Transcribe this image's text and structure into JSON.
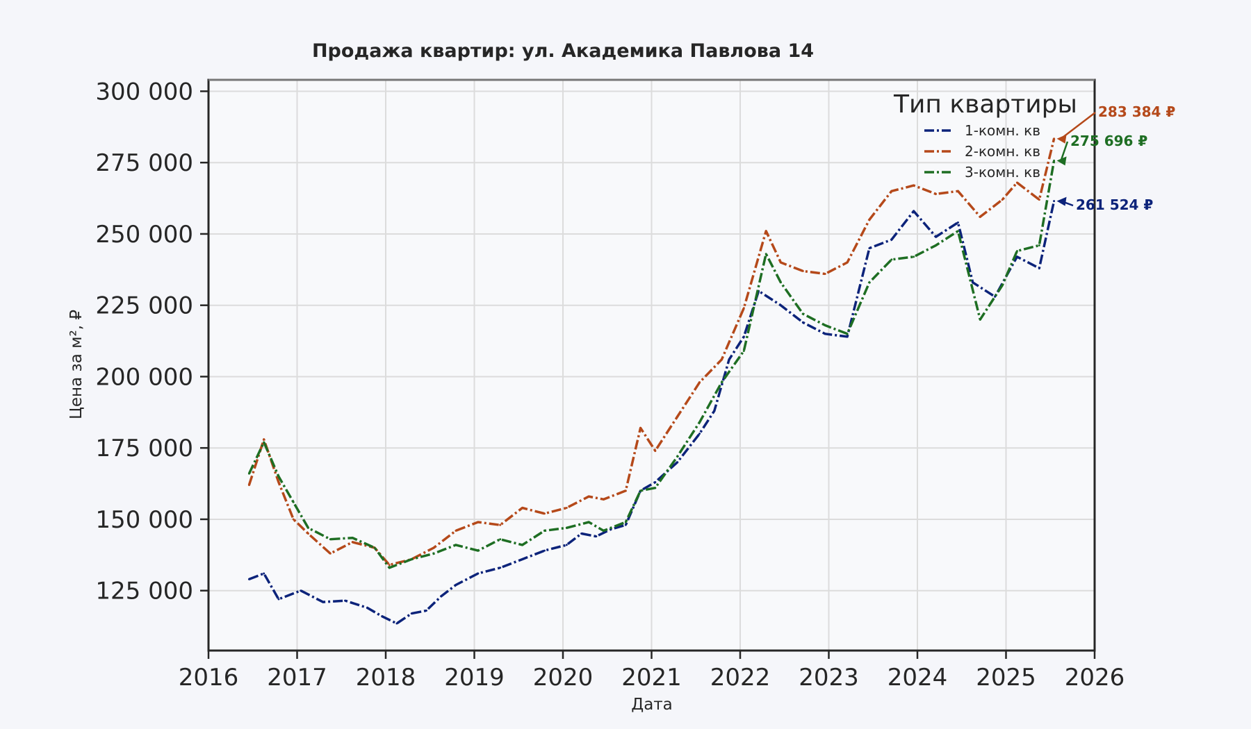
{
  "chart_data": {
    "type": "line",
    "title": "Продажа квартир: ул. Академика Павлова 14",
    "xlabel": "Дата",
    "ylabel": "Цена за м², ₽",
    "xlim": [
      "2016-01-01",
      "2026-01-01"
    ],
    "ylim": [
      104000,
      304000
    ],
    "x_ticks": [
      "2016",
      "2017",
      "2018",
      "2019",
      "2020",
      "2021",
      "2022",
      "2023",
      "2024",
      "2025",
      "2026"
    ],
    "y_ticks": [
      {
        "value": 125000,
        "label": "125 000"
      },
      {
        "value": 150000,
        "label": "150 000"
      },
      {
        "value": 175000,
        "label": "175 000"
      },
      {
        "value": 200000,
        "label": "200 000"
      },
      {
        "value": 225000,
        "label": "225 000"
      },
      {
        "value": 250000,
        "label": "250 000"
      },
      {
        "value": 275000,
        "label": "275 000"
      },
      {
        "value": 300000,
        "label": "300 000"
      }
    ],
    "grid": true,
    "legend": {
      "title": "Тип квартиры",
      "position": "top-right"
    },
    "series": [
      {
        "name": "1-комн. кв",
        "color": "#0c237a",
        "points": [
          [
            "2016-06",
            "129000"
          ],
          [
            "2016-08",
            "131000"
          ],
          [
            "2016-10",
            "122000"
          ],
          [
            "2017-01",
            "125000"
          ],
          [
            "2017-04",
            "121000"
          ],
          [
            "2017-07",
            "121500"
          ],
          [
            "2017-10",
            "119000"
          ],
          [
            "2017-12",
            "116000"
          ],
          [
            "2018-02",
            "113500"
          ],
          [
            "2018-04",
            "117000"
          ],
          [
            "2018-06",
            "118000"
          ],
          [
            "2018-08",
            "123000"
          ],
          [
            "2018-10",
            "127000"
          ],
          [
            "2019-01",
            "131000"
          ],
          [
            "2019-04",
            "133000"
          ],
          [
            "2019-07",
            "136000"
          ],
          [
            "2019-10",
            "139000"
          ],
          [
            "2020-01",
            "141000"
          ],
          [
            "2020-03",
            "145000"
          ],
          [
            "2020-05",
            "144000"
          ],
          [
            "2020-07",
            "146500"
          ],
          [
            "2020-09",
            "148000"
          ],
          [
            "2020-11",
            "160000"
          ],
          [
            "2021-01",
            "163000"
          ],
          [
            "2021-04",
            "170000"
          ],
          [
            "2021-07",
            "180000"
          ],
          [
            "2021-09",
            "188000"
          ],
          [
            "2021-11",
            "206000"
          ],
          [
            "2022-01",
            "214000"
          ],
          [
            "2022-03",
            "230000"
          ],
          [
            "2022-06",
            "225000"
          ],
          [
            "2022-09",
            "219000"
          ],
          [
            "2022-12",
            "215000"
          ],
          [
            "2023-03",
            "214000"
          ],
          [
            "2023-06",
            "245000"
          ],
          [
            "2023-09",
            "248000"
          ],
          [
            "2023-12",
            "258000"
          ],
          [
            "2024-03",
            "249000"
          ],
          [
            "2024-06",
            "254000"
          ],
          [
            "2024-08",
            "233000"
          ],
          [
            "2024-11",
            "228000"
          ],
          [
            "2025-02",
            "242000"
          ],
          [
            "2025-05",
            "238000"
          ],
          [
            "2025-07",
            "261524"
          ]
        ]
      },
      {
        "name": "2-комн. кв",
        "color": "#b5491a",
        "points": [
          [
            "2016-06",
            "162000"
          ],
          [
            "2016-08",
            "178000"
          ],
          [
            "2016-10",
            "163000"
          ],
          [
            "2016-12",
            "150000"
          ],
          [
            "2017-02",
            "145000"
          ],
          [
            "2017-05",
            "138000"
          ],
          [
            "2017-08",
            "142000"
          ],
          [
            "2017-11",
            "140000"
          ],
          [
            "2018-01",
            "134000"
          ],
          [
            "2018-04",
            "136000"
          ],
          [
            "2018-07",
            "140000"
          ],
          [
            "2018-10",
            "146000"
          ],
          [
            "2019-01",
            "149000"
          ],
          [
            "2019-04",
            "148000"
          ],
          [
            "2019-07",
            "154000"
          ],
          [
            "2019-10",
            "152000"
          ],
          [
            "2020-01",
            "154000"
          ],
          [
            "2020-04",
            "158000"
          ],
          [
            "2020-06",
            "157000"
          ],
          [
            "2020-09",
            "160000"
          ],
          [
            "2020-11",
            "182000"
          ],
          [
            "2021-01",
            "174000"
          ],
          [
            "2021-04",
            "186000"
          ],
          [
            "2021-07",
            "198000"
          ],
          [
            "2021-10",
            "206000"
          ],
          [
            "2022-01",
            "224000"
          ],
          [
            "2022-04",
            "251000"
          ],
          [
            "2022-06",
            "240000"
          ],
          [
            "2022-09",
            "237000"
          ],
          [
            "2022-12",
            "236000"
          ],
          [
            "2023-03",
            "240000"
          ],
          [
            "2023-06",
            "255000"
          ],
          [
            "2023-09",
            "265000"
          ],
          [
            "2023-12",
            "267000"
          ],
          [
            "2024-03",
            "264000"
          ],
          [
            "2024-06",
            "265000"
          ],
          [
            "2024-09",
            "256000"
          ],
          [
            "2024-12",
            "262000"
          ],
          [
            "2025-02",
            "268000"
          ],
          [
            "2025-05",
            "262000"
          ],
          [
            "2025-07",
            "283384"
          ]
        ]
      },
      {
        "name": "3-комн. кв",
        "color": "#1e6e23",
        "points": [
          [
            "2016-06",
            "166000"
          ],
          [
            "2016-08",
            "177000"
          ],
          [
            "2016-10",
            "165000"
          ],
          [
            "2016-12",
            "156000"
          ],
          [
            "2017-02",
            "147000"
          ],
          [
            "2017-05",
            "143000"
          ],
          [
            "2017-08",
            "143500"
          ],
          [
            "2017-11",
            "140000"
          ],
          [
            "2018-01",
            "133000"
          ],
          [
            "2018-04",
            "136000"
          ],
          [
            "2018-07",
            "138000"
          ],
          [
            "2018-10",
            "141000"
          ],
          [
            "2019-01",
            "139000"
          ],
          [
            "2019-04",
            "143000"
          ],
          [
            "2019-07",
            "141000"
          ],
          [
            "2019-10",
            "146000"
          ],
          [
            "2020-01",
            "147000"
          ],
          [
            "2020-04",
            "149000"
          ],
          [
            "2020-06",
            "146000"
          ],
          [
            "2020-09",
            "149000"
          ],
          [
            "2020-11",
            "160000"
          ],
          [
            "2021-01",
            "161000"
          ],
          [
            "2021-04",
            "172000"
          ],
          [
            "2021-07",
            "184000"
          ],
          [
            "2021-10",
            "198000"
          ],
          [
            "2022-01",
            "209000"
          ],
          [
            "2022-04",
            "243000"
          ],
          [
            "2022-06",
            "233000"
          ],
          [
            "2022-09",
            "222000"
          ],
          [
            "2022-12",
            "218000"
          ],
          [
            "2023-03",
            "215000"
          ],
          [
            "2023-06",
            "233000"
          ],
          [
            "2023-09",
            "241000"
          ],
          [
            "2023-12",
            "242000"
          ],
          [
            "2024-03",
            "246000"
          ],
          [
            "2024-06",
            "251000"
          ],
          [
            "2024-09",
            "220000"
          ],
          [
            "2024-12",
            "232000"
          ],
          [
            "2025-02",
            "244000"
          ],
          [
            "2025-05",
            "246000"
          ],
          [
            "2025-07",
            "275696"
          ]
        ]
      }
    ],
    "annotations": [
      {
        "label": "283 384 ₽",
        "series": 1,
        "date": "2025-07",
        "value": 283384
      },
      {
        "label": "275 696 ₽",
        "series": 2,
        "date": "2025-07",
        "value": 275696
      },
      {
        "label": "261 524 ₽",
        "series": 0,
        "date": "2025-07",
        "value": 261524
      }
    ]
  }
}
